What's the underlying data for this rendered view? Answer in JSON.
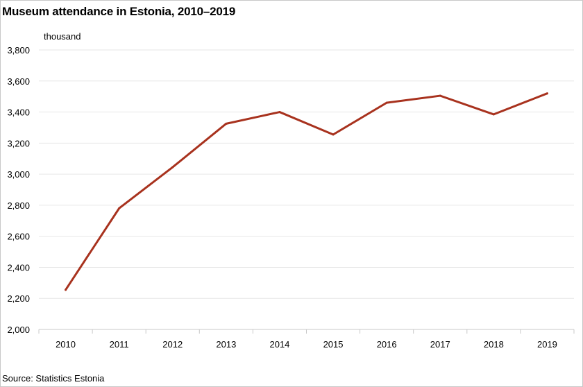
{
  "chart_data": {
    "type": "line",
    "title": "Museum attendance in Estonia, 2010–2019",
    "unit": "thousand",
    "source": "Source: Statistics Estonia",
    "categories": [
      "2010",
      "2011",
      "2012",
      "2013",
      "2014",
      "2015",
      "2016",
      "2017",
      "2018",
      "2019"
    ],
    "series": [
      {
        "values": [
          2255,
          2780,
          3045,
          3325,
          3400,
          3255,
          3460,
          3505,
          3385,
          3520
        ]
      }
    ],
    "ylim": [
      2000,
      3800
    ],
    "yticks": [
      2000,
      2200,
      2400,
      2600,
      2800,
      3000,
      3200,
      3400,
      3600,
      3800
    ],
    "ytick_labels": [
      "2,000",
      "2,200",
      "2,400",
      "2,600",
      "2,800",
      "3,000",
      "3,200",
      "3,400",
      "3,600",
      "3,800"
    ],
    "grid": true,
    "colors": {
      "line": "#a8321e",
      "grid": "#e6e6e6",
      "axis": "#c8c8c8"
    }
  }
}
